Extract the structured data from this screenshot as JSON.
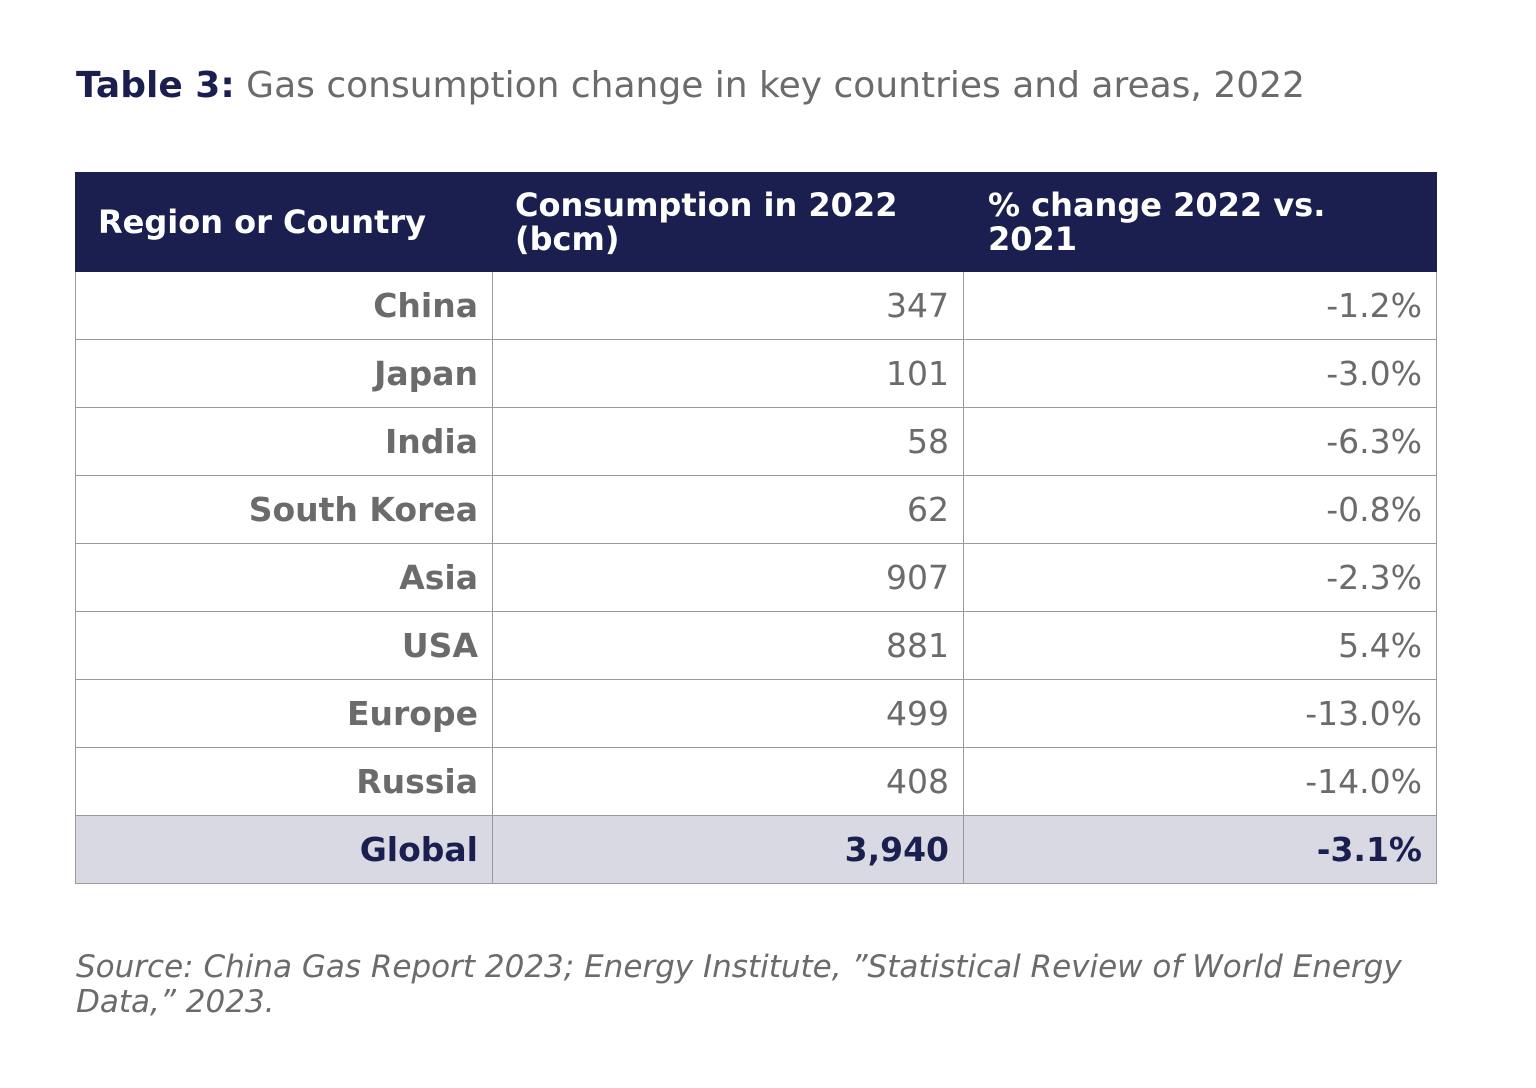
{
  "title": {
    "label": "Table 3:",
    "text": "Gas consumption change in key countries and areas, 2022"
  },
  "table": {
    "headers": [
      "Region or Country",
      "Consumption in 2022 (bcm)",
      "% change 2022 vs. 2021"
    ],
    "rows": [
      {
        "region": "China",
        "consumption": "347",
        "change": "-1.2%"
      },
      {
        "region": "Japan",
        "consumption": "101",
        "change": "-3.0%"
      },
      {
        "region": "India",
        "consumption": "58",
        "change": "-6.3%"
      },
      {
        "region": "South Korea",
        "consumption": "62",
        "change": "-0.8%"
      },
      {
        "region": "Asia",
        "consumption": "907",
        "change": "-2.3%"
      },
      {
        "region": "USA",
        "consumption": "881",
        "change": "5.4%"
      },
      {
        "region": "Europe",
        "consumption": "499",
        "change": "-13.0%"
      },
      {
        "region": "Russia",
        "consumption": "408",
        "change": "-14.0%"
      }
    ],
    "total": {
      "region": "Global",
      "consumption": "3,940",
      "change": "-3.1%"
    }
  },
  "source": "Source: China Gas Report 2023; Energy Institute, ”Statistical Review of World Energy Data,” 2023.",
  "colors": {
    "header_bg": "#1a1f4f",
    "total_row_bg": "#d9d9e3",
    "body_text": "#6b6b6b"
  }
}
